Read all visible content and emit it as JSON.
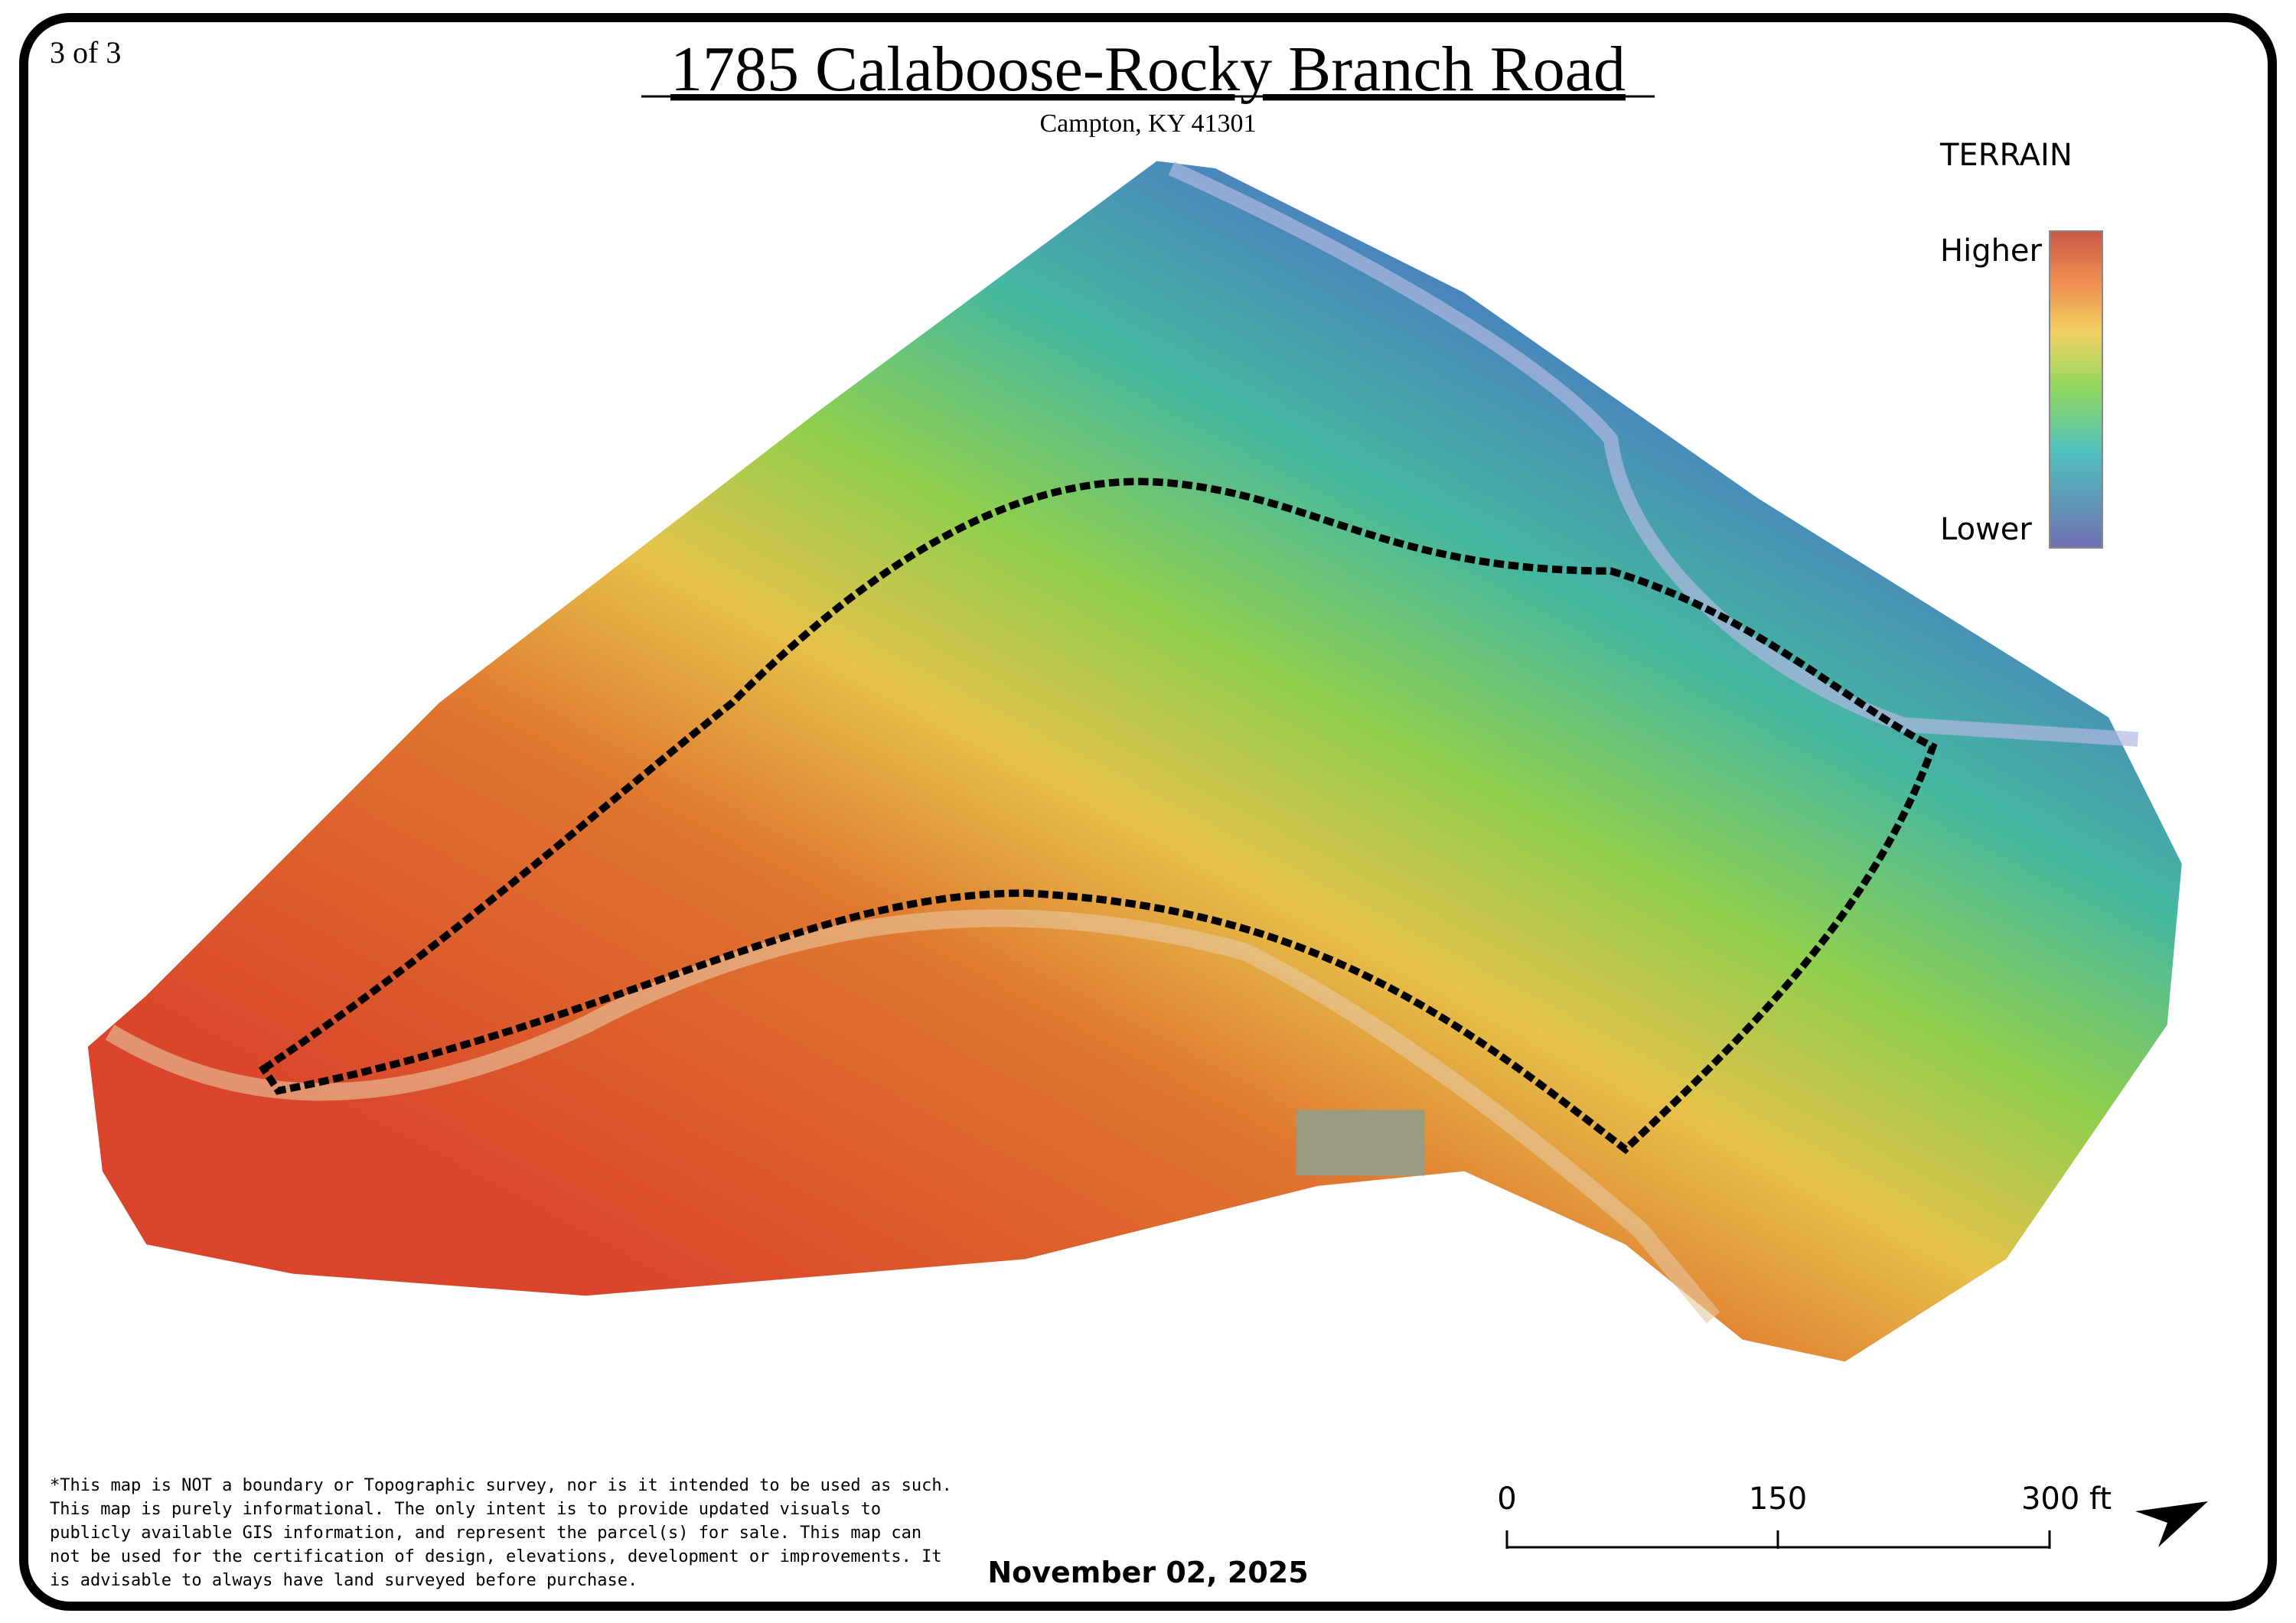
{
  "page": {
    "number": "3 of 3"
  },
  "header": {
    "title": "1785 Calaboose-Rocky Branch Road",
    "subtitle": "Campton, KY 41301"
  },
  "legend": {
    "title": "TERRAIN",
    "high": "Higher",
    "low": "Lower"
  },
  "disclaimer": [
    "*This map is NOT a boundary or Topographic survey, nor is it intended to be used as such.",
    "This map is purely informational. The only intent is to provide updated visuals to",
    "publicly available GIS information, and represent the parcel(s) for sale. This map can",
    "not be used for the certification of design, elevations, development or improvements. It",
    "is advisable to always have land surveyed before purchase."
  ],
  "date": "November 02, 2025",
  "scale_bar": {
    "labels": [
      "0",
      "150",
      "300 ft"
    ]
  }
}
